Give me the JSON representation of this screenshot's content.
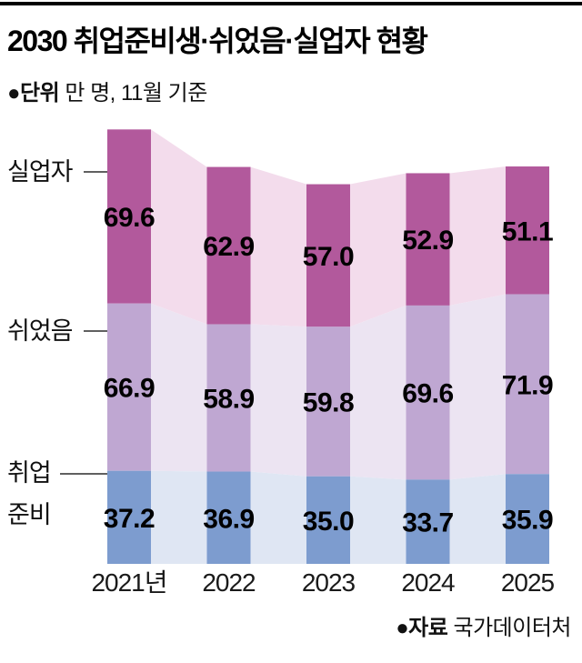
{
  "header": {
    "title": "2030 취업준비생·쉬었음·실업자 현황",
    "unit_bold": "●단위",
    "unit_text": " 만 명, 11월 기준"
  },
  "chart_data": {
    "type": "bar",
    "variant": "stacked-columns-with-flow-bands",
    "title": "2030 취업준비생·쉬었음·실업자 현황",
    "unit": "만 명",
    "as_of": "11월 기준",
    "categories": [
      "2021년",
      "2022",
      "2023",
      "2024",
      "2025"
    ],
    "series": [
      {
        "name": "실업자",
        "key": "unemployed",
        "label_lines": [
          "실업자"
        ],
        "color": "#b2599c",
        "flow_color": "#f3dcec",
        "values": [
          69.6,
          62.9,
          57.0,
          52.9,
          51.1
        ]
      },
      {
        "name": "쉬었음",
        "key": "inactive",
        "label_lines": [
          "쉬었음"
        ],
        "color": "#bfa7d2",
        "flow_color": "#ece4f2",
        "values": [
          66.9,
          58.9,
          59.8,
          69.6,
          71.9
        ]
      },
      {
        "name": "취업준비",
        "key": "job-prep",
        "label_lines": [
          "취업",
          "준비"
        ],
        "color": "#7d9ccf",
        "flow_color": "#dfe6f3",
        "values": [
          37.2,
          36.9,
          35.0,
          33.7,
          35.9
        ]
      }
    ],
    "stack_order_top_to_bottom": [
      "실업자",
      "쉬었음",
      "취업준비"
    ],
    "legend_position": "left-of-first-column",
    "grid": false
  },
  "footer": {
    "source_bold": "●자료",
    "source_text": " 국가데이터처"
  }
}
